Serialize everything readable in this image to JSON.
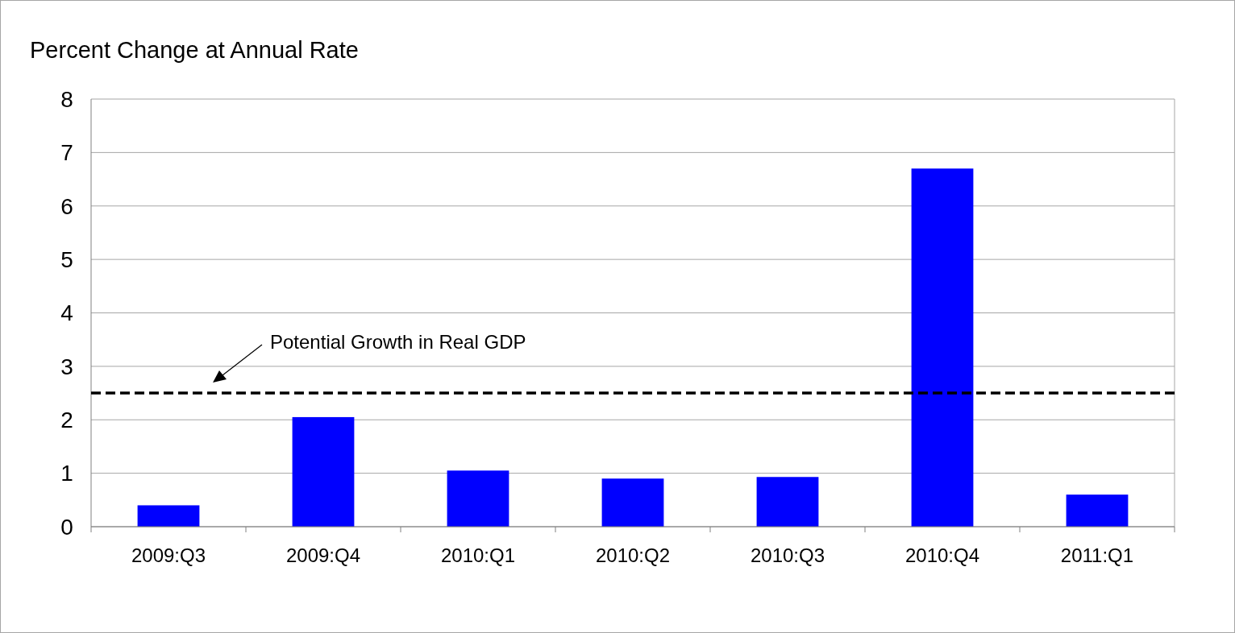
{
  "chart_data": {
    "type": "bar",
    "ylabel": "Percent Change at Annual Rate",
    "categories": [
      "2009:Q3",
      "2009:Q4",
      "2010:Q1",
      "2010:Q2",
      "2010:Q3",
      "2010:Q4",
      "2011:Q1"
    ],
    "values": [
      0.4,
      2.05,
      1.05,
      0.9,
      0.93,
      6.7,
      0.6
    ],
    "color": "#0000ff",
    "ylim": [
      0,
      8
    ],
    "yticks": [
      0,
      1,
      2,
      3,
      4,
      5,
      6,
      7,
      8
    ],
    "grid": "y",
    "ref_lines": [
      {
        "axis": "y",
        "value": 2.5,
        "label": "Potential Growth in Real GDP",
        "color": "#000000",
        "line_style": "dashed"
      }
    ]
  }
}
